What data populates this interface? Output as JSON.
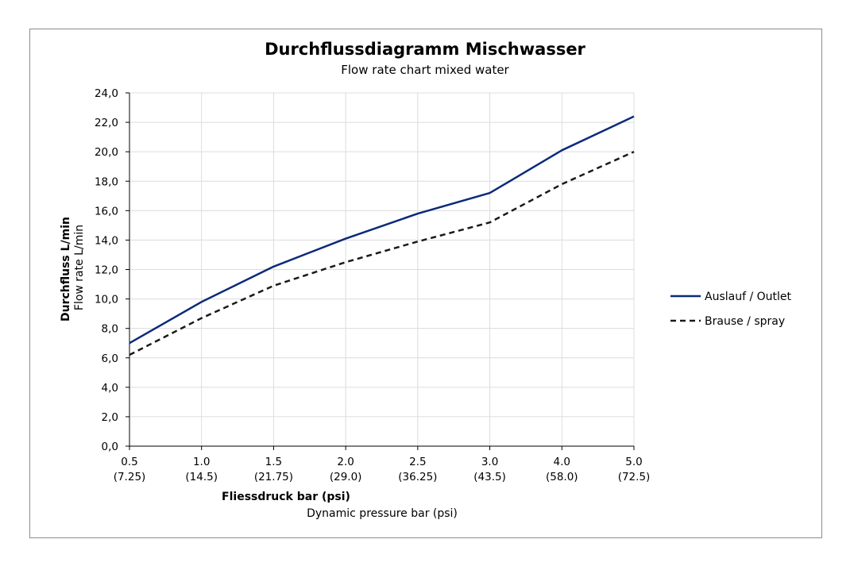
{
  "chart_data": {
    "type": "line",
    "title": "Durchflussdiagramm Mischwasser",
    "subtitle": "Flow rate chart mixed water",
    "categories": [
      "0.5",
      "1.0",
      "1.5",
      "2.0",
      "2.5",
      "3.0",
      "4.0",
      "5.0"
    ],
    "categories_sub": [
      "(7.25)",
      "(14.5)",
      "(21.75)",
      "(29.0)",
      "(36.25)",
      "(43.5)",
      "(58.0)",
      "(72.5)"
    ],
    "xlabel": "Fliessdruck bar (psi)",
    "xlabel_sub": "Dynamic pressure bar (psi)",
    "ylabel": "Durchfluss L/min",
    "ylabel_sub": "Flow rate L/min",
    "ylim": [
      0,
      24
    ],
    "yticks": [
      "0,0",
      "2,0",
      "4,0",
      "6,0",
      "8,0",
      "10,0",
      "12,0",
      "14,0",
      "16,0",
      "18,0",
      "20,0",
      "22,0",
      "24,0"
    ],
    "grid": true,
    "legend_position": "right",
    "series": [
      {
        "name": "Auslauf / Outlet",
        "color": "#0b2a7a",
        "style": "solid",
        "values": [
          7.0,
          9.8,
          12.2,
          14.1,
          15.8,
          17.2,
          20.1,
          22.4
        ]
      },
      {
        "name": "Brause / spray",
        "color": "#1a1a1a",
        "style": "dashed",
        "values": [
          6.2,
          8.7,
          10.9,
          12.5,
          13.9,
          15.2,
          17.8,
          20.0
        ]
      }
    ]
  }
}
